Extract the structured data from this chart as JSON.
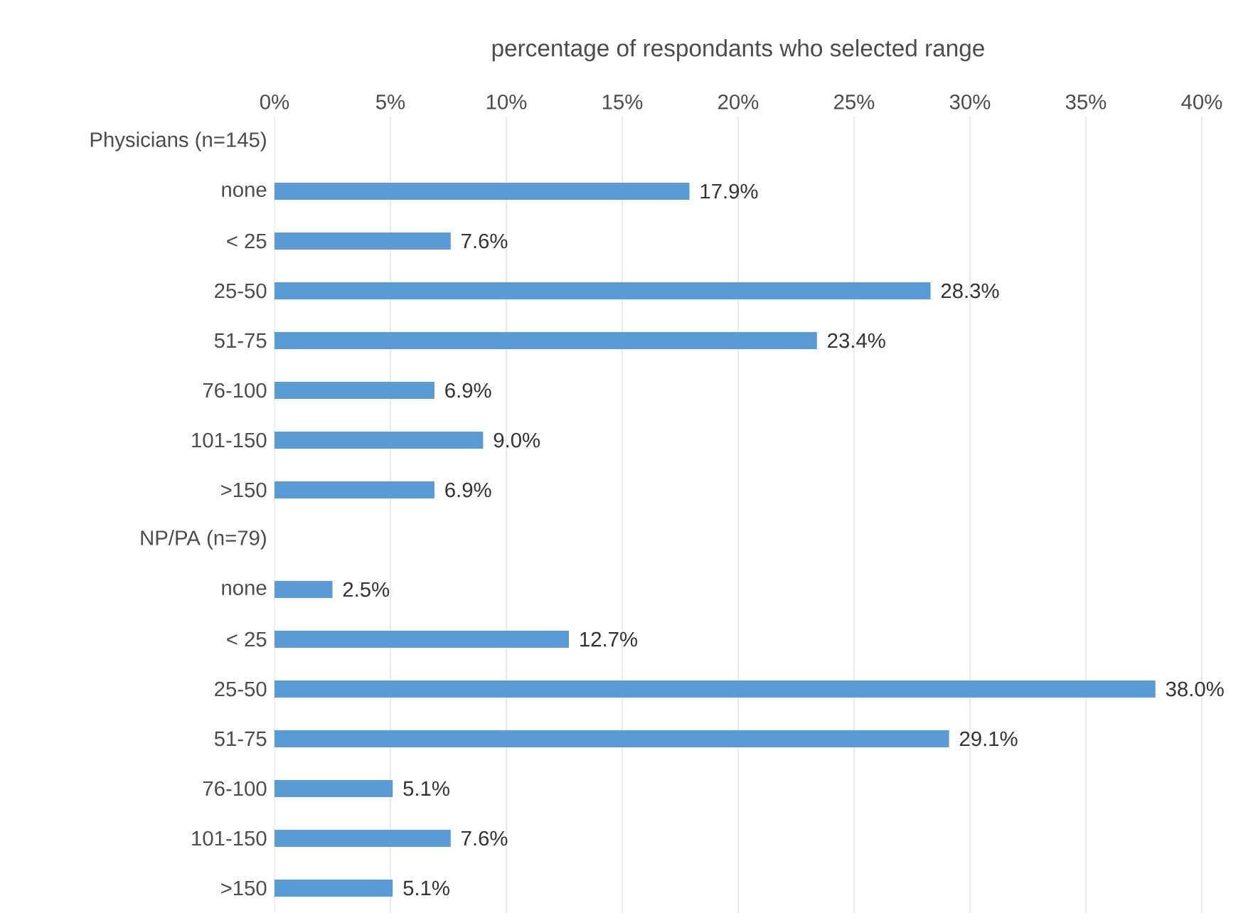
{
  "chart_data": {
    "type": "bar",
    "orientation": "horizontal",
    "xlabel": "percentage of respondants who selected range",
    "categories": [
      "Physicians  (n=145)",
      "none",
      "< 25",
      "25-50",
      "51-75",
      "76-100",
      "101-150",
      ">150",
      "NP/PA   (n=79)",
      "none",
      "< 25",
      "25-50",
      "51-75",
      "76-100",
      "101-150",
      ">150"
    ],
    "values": [
      null,
      17.9,
      7.6,
      28.3,
      23.4,
      6.9,
      9.0,
      6.9,
      null,
      2.5,
      12.7,
      38.0,
      29.1,
      5.1,
      7.6,
      5.1
    ],
    "value_labels": [
      null,
      "17.9%",
      "7.6%",
      "28.3%",
      "23.4%",
      "6.9%",
      "9.0%",
      "6.9%",
      null,
      "2.5%",
      "12.7%",
      "38.0%",
      "29.1%",
      "5.1%",
      "7.6%",
      "5.1%"
    ],
    "color": "#5b9bd5",
    "xlim": [
      0,
      40
    ],
    "xticks": [
      {
        "value": 0,
        "label": "0%"
      },
      {
        "value": 5,
        "label": "5%"
      },
      {
        "value": 10,
        "label": "10%"
      },
      {
        "value": 15,
        "label": "15%"
      },
      {
        "value": 20,
        "label": "20%"
      },
      {
        "value": 25,
        "label": "25%"
      },
      {
        "value": 30,
        "label": "30%"
      },
      {
        "value": 35,
        "label": "35%"
      },
      {
        "value": 40,
        "label": "40%"
      }
    ],
    "grid": "x"
  }
}
